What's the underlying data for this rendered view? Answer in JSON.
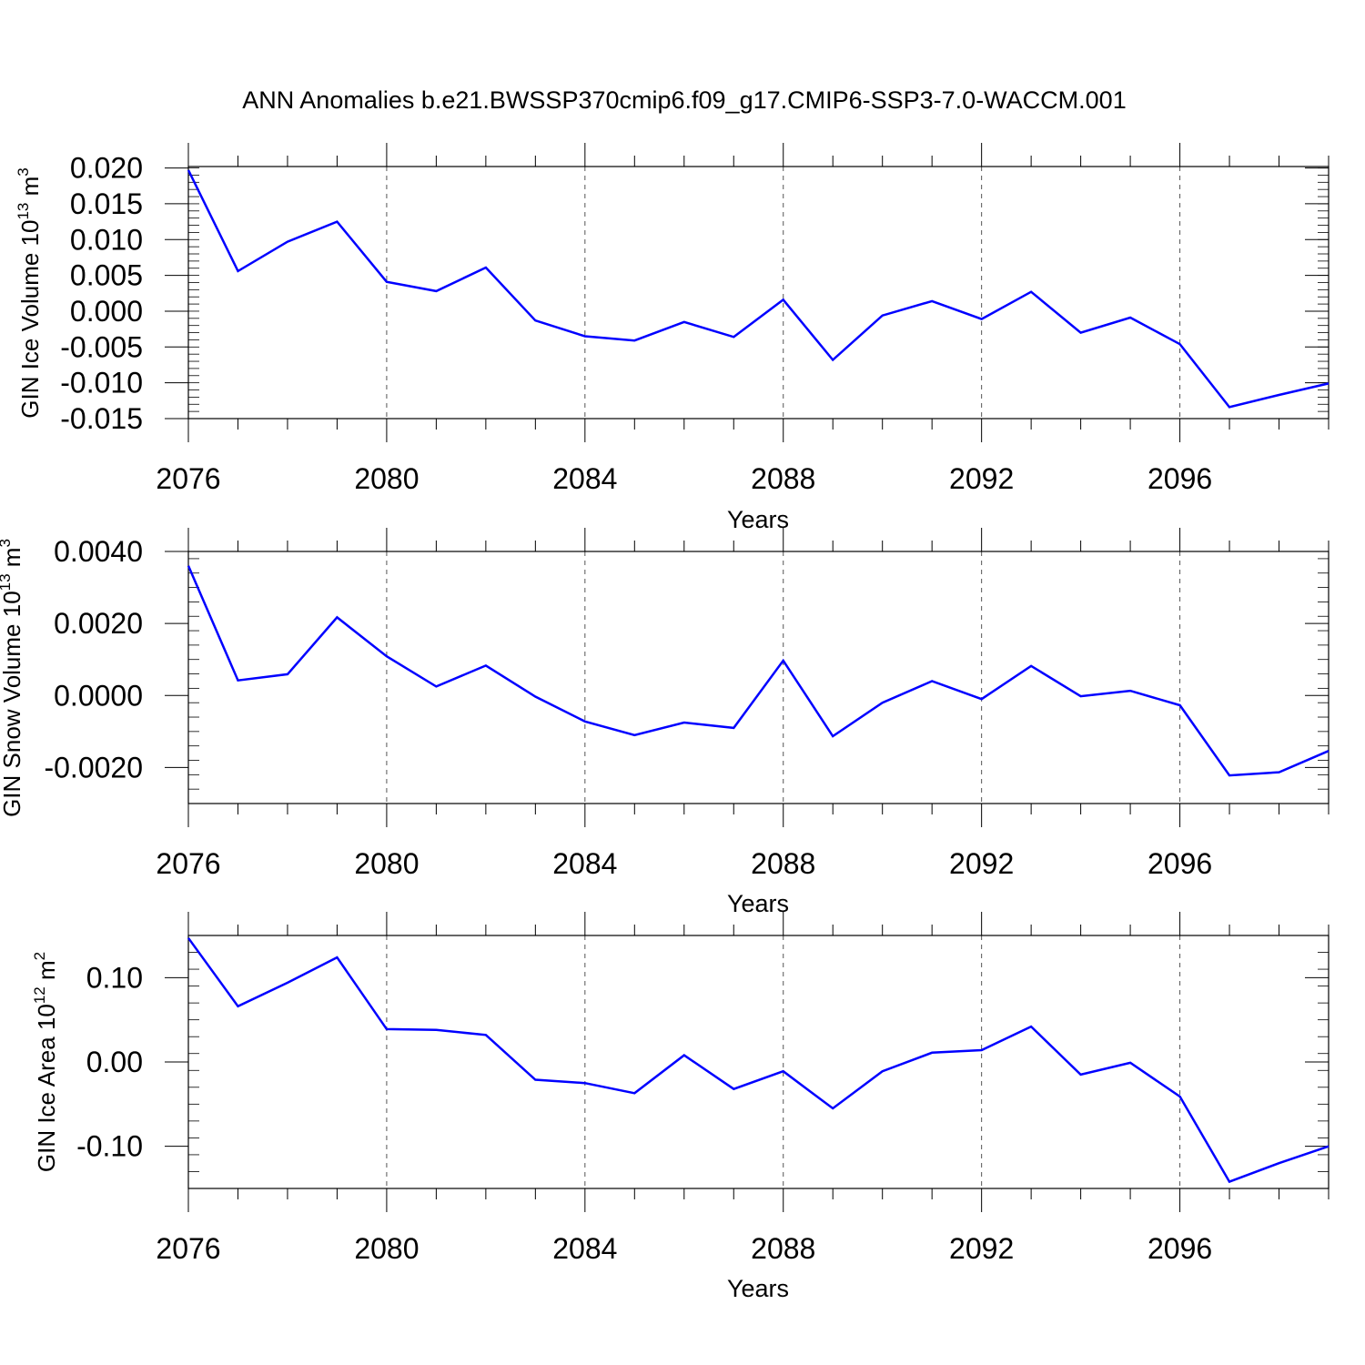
{
  "chart_data": [
    {
      "type": "line",
      "title": "ANN Anomalies b.e21.BWSSP370cmip6.f09_g17.CMIP6-SSP3-7.0-WACCM.001",
      "xlabel": "Years",
      "ylabel": {
        "main": "GIN Ice Volume 10",
        "exp": "13",
        "unit": " m",
        "unit_exp": "3"
      },
      "xlim": [
        2076,
        2099
      ],
      "ylim": [
        -0.015,
        0.0202
      ],
      "xticks": [
        "2076",
        "2080",
        "2084",
        "2088",
        "2092",
        "2096"
      ],
      "yticks": [
        "0.020",
        "0.015",
        "0.010",
        "0.005",
        "0.000",
        "-0.005",
        "-0.010",
        "-0.015"
      ],
      "grid": "x-dashed",
      "line_color": "#0000ff",
      "x": [
        2076,
        2077,
        2078,
        2079,
        2080,
        2081,
        2082,
        2083,
        2084,
        2085,
        2086,
        2087,
        2088,
        2089,
        2090,
        2091,
        2092,
        2093,
        2094,
        2095,
        2096,
        2097,
        2098,
        2099
      ],
      "values": [
        0.0197,
        0.0056,
        0.0097,
        0.0125,
        0.0041,
        0.0028,
        0.0061,
        -0.0013,
        -0.0035,
        -0.0041,
        -0.0015,
        -0.0036,
        0.0016,
        -0.0068,
        -0.0006,
        0.0014,
        -0.0011,
        0.0027,
        -0.003,
        -0.0009,
        -0.0046,
        -0.0134,
        -0.0117,
        -0.0101
      ]
    },
    {
      "type": "line",
      "xlabel": "Years",
      "ylabel": {
        "main": "GIN Snow Volume 10",
        "exp": "13",
        "unit": " m",
        "unit_exp": "3"
      },
      "xlim": [
        2076,
        2099
      ],
      "ylim": [
        -0.003,
        0.004
      ],
      "xticks": [
        "2076",
        "2080",
        "2084",
        "2088",
        "2092",
        "2096"
      ],
      "yticks": [
        "0.0040",
        "0.0020",
        "0.0000",
        "-0.0020"
      ],
      "grid": "x-dashed",
      "line_color": "#0000ff",
      "x": [
        2076,
        2077,
        2078,
        2079,
        2080,
        2081,
        2082,
        2083,
        2084,
        2085,
        2086,
        2087,
        2088,
        2089,
        2090,
        2091,
        2092,
        2093,
        2094,
        2095,
        2096,
        2097,
        2098,
        2099
      ],
      "values": [
        0.0036,
        0.00042,
        0.00059,
        0.00217,
        0.00109,
        0.00025,
        0.00083,
        -3e-05,
        -0.00072,
        -0.0011,
        -0.00075,
        -0.0009,
        0.00097,
        -0.00113,
        -0.0002,
        0.0004,
        -0.0001,
        0.00082,
        -2e-05,
        0.00013,
        -0.00027,
        -0.00222,
        -0.00213,
        -0.00154
      ]
    },
    {
      "type": "line",
      "xlabel": "Years",
      "ylabel": {
        "main": "GIN Ice Area 10",
        "exp": "12",
        "unit": " m",
        "unit_exp": "2"
      },
      "xlim": [
        2076,
        2099
      ],
      "ylim": [
        -0.15,
        0.15
      ],
      "xticks": [
        "2076",
        "2080",
        "2084",
        "2088",
        "2092",
        "2096"
      ],
      "yticks": [
        "0.10",
        "0.00",
        "-0.10"
      ],
      "grid": "x-dashed",
      "line_color": "#0000ff",
      "x": [
        2076,
        2077,
        2078,
        2079,
        2080,
        2081,
        2082,
        2083,
        2084,
        2085,
        2086,
        2087,
        2088,
        2089,
        2090,
        2091,
        2092,
        2093,
        2094,
        2095,
        2096,
        2097,
        2098,
        2099
      ],
      "values": [
        0.147,
        0.066,
        0.094,
        0.124,
        0.039,
        0.038,
        0.032,
        -0.021,
        -0.025,
        -0.037,
        0.008,
        -0.032,
        -0.011,
        -0.055,
        -0.011,
        0.011,
        0.014,
        0.042,
        -0.015,
        -0.001,
        -0.041,
        -0.142,
        -0.12,
        -0.1
      ]
    }
  ]
}
